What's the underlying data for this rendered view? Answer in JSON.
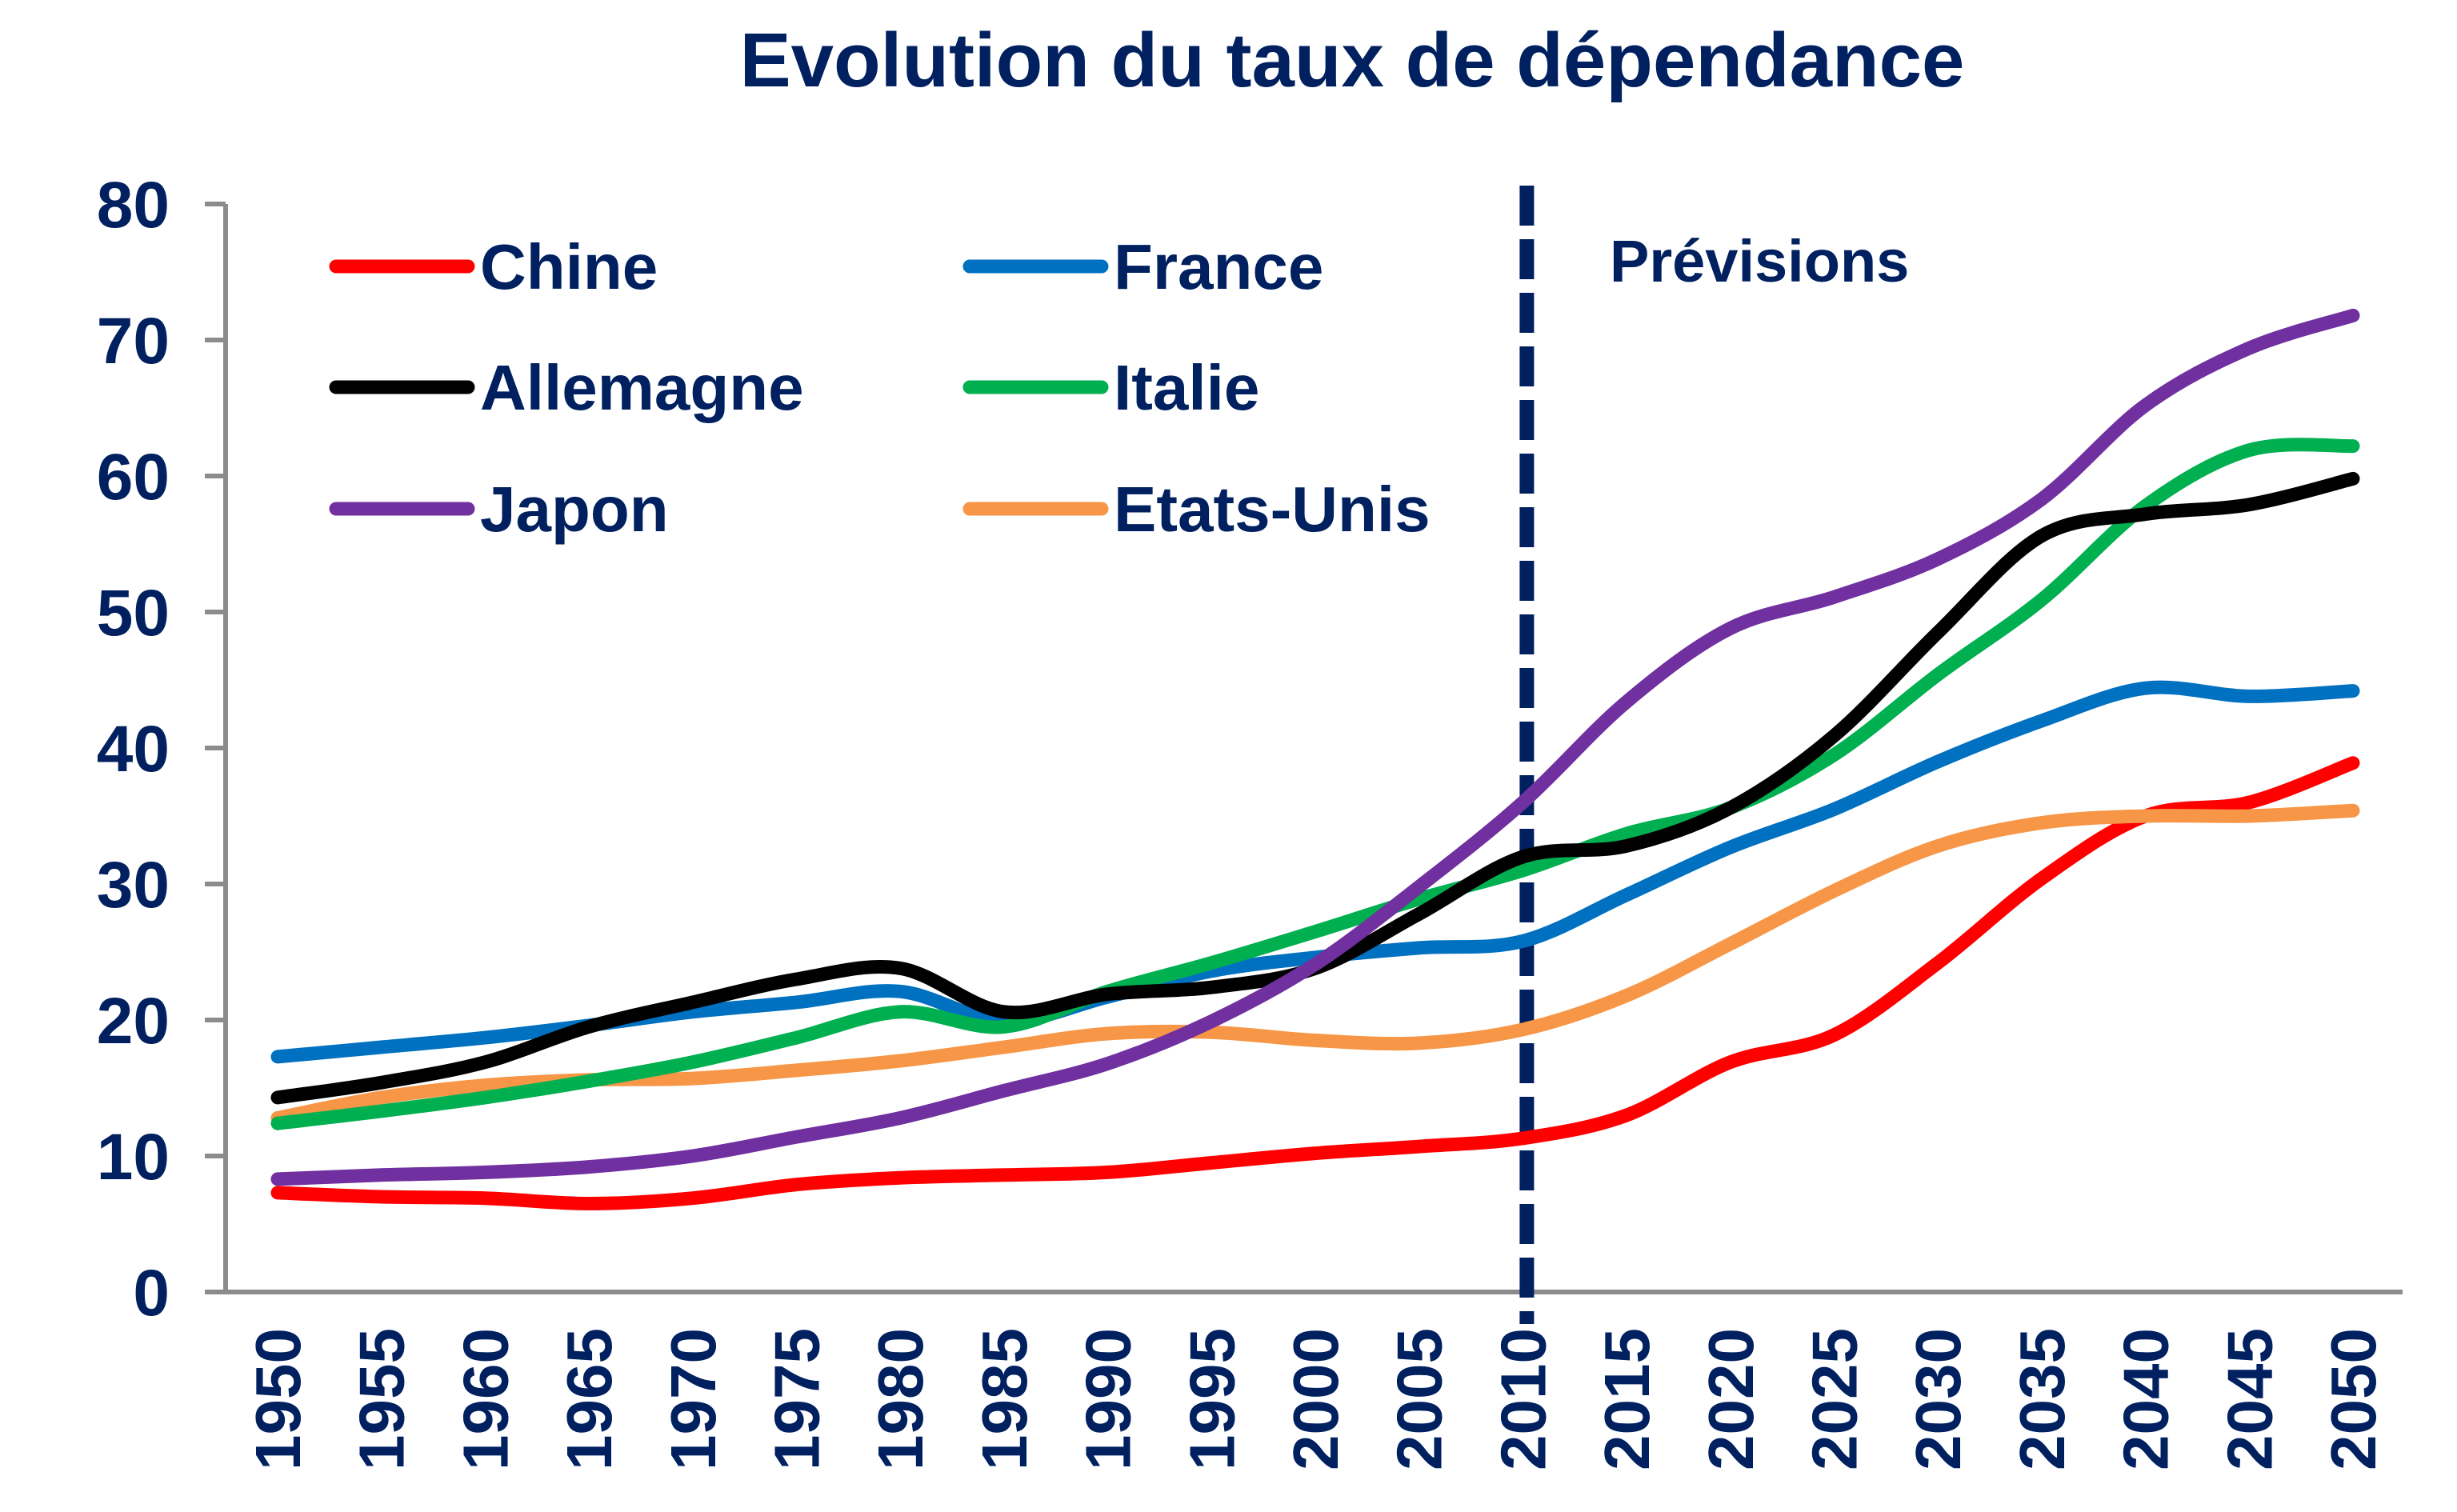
{
  "chart_data": {
    "type": "line",
    "title": "Evolution du taux de dépendance",
    "xlabel": "",
    "ylabel": "",
    "ylim": [
      0,
      80
    ],
    "yticks": [
      0,
      10,
      20,
      30,
      40,
      50,
      60,
      70,
      80
    ],
    "grid": false,
    "legend_position": "top-left",
    "annotation": {
      "label": "Prévisions",
      "x": 2010,
      "style": "dashed-vertical-line",
      "color": "#002060"
    },
    "x": [
      1950,
      1955,
      1960,
      1965,
      1970,
      1975,
      1980,
      1985,
      1990,
      1995,
      2000,
      2005,
      2010,
      2015,
      2020,
      2025,
      2030,
      2035,
      2040,
      2045,
      2050
    ],
    "x_tick_labels": [
      "1950",
      "1955",
      "1960",
      "1965",
      "1970",
      "1975",
      "1980",
      "1985",
      "1990",
      "1995",
      "2000",
      "2005",
      "2010",
      "2015",
      "2020",
      "2025",
      "2030",
      "2035",
      "2040",
      "2045",
      "2050"
    ],
    "series": [
      {
        "name": "Chine",
        "color": "#FF0000",
        "values": [
          7.3,
          7.0,
          6.9,
          6.5,
          6.9,
          7.9,
          8.4,
          8.6,
          8.8,
          9.5,
          10.2,
          10.7,
          11.3,
          13.0,
          16.9,
          18.9,
          24.2,
          30.4,
          35.0,
          36.0,
          38.9
        ]
      },
      {
        "name": "France",
        "color": "#0070C0",
        "values": [
          17.3,
          18.0,
          18.7,
          19.6,
          20.6,
          21.3,
          22.1,
          19.9,
          21.7,
          23.6,
          24.6,
          25.3,
          25.8,
          29.2,
          32.7,
          35.5,
          39.0,
          42.0,
          44.4,
          43.8,
          44.2
        ]
      },
      {
        "name": "Allemagne",
        "color": "#000000",
        "values": [
          14.3,
          15.4,
          16.9,
          19.5,
          21.3,
          23.0,
          23.8,
          20.6,
          21.9,
          22.4,
          23.8,
          27.8,
          32.0,
          32.8,
          35.6,
          40.9,
          48.5,
          55.6,
          57.2,
          57.9,
          59.8
        ]
      },
      {
        "name": "Italie",
        "color": "#00B050",
        "values": [
          12.4,
          13.3,
          14.3,
          15.5,
          16.9,
          18.7,
          20.6,
          19.5,
          22.1,
          24.2,
          26.5,
          28.9,
          31.0,
          33.7,
          35.6,
          39.5,
          45.4,
          50.9,
          57.8,
          61.9,
          62.2
        ]
      },
      {
        "name": "Japon",
        "color": "#7030A0",
        "values": [
          8.3,
          8.6,
          8.8,
          9.2,
          10.0,
          11.4,
          12.8,
          14.8,
          16.8,
          19.9,
          24.1,
          29.8,
          36.0,
          43.4,
          48.8,
          51.1,
          53.9,
          58.3,
          65.2,
          69.4,
          71.8
        ]
      },
      {
        "name": "Etats-Unis",
        "color": "#F79646",
        "values": [
          12.8,
          14.3,
          15.2,
          15.6,
          15.7,
          16.3,
          17.0,
          18.0,
          19.0,
          19.1,
          18.5,
          18.3,
          19.3,
          21.8,
          25.6,
          29.5,
          32.8,
          34.5,
          35.0,
          35.0,
          35.4
        ]
      }
    ]
  }
}
